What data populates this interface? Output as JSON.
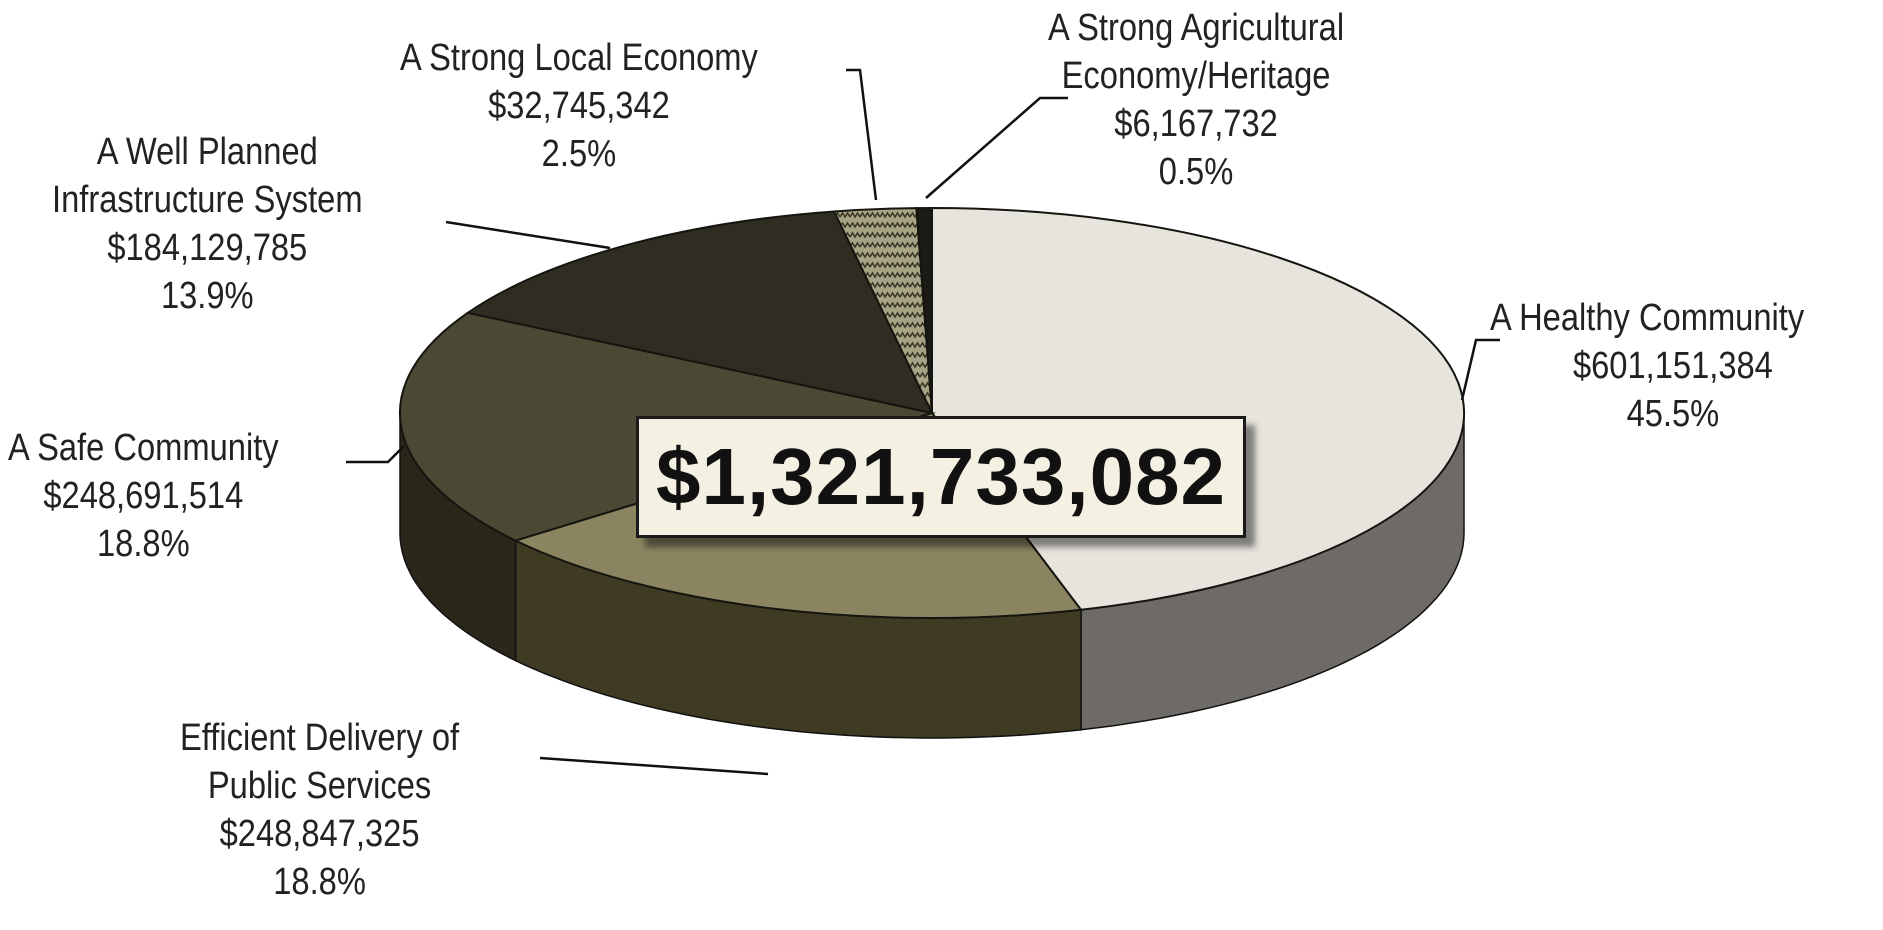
{
  "chart_data": {
    "type": "pie",
    "title": "",
    "total_label": "$1,321,733,082",
    "slices": [
      {
        "name": "A Healthy Community",
        "name_lines": [
          "A Healthy Community"
        ],
        "value": 601151384,
        "value_label": "$601,151,384",
        "percent": 45.5,
        "percent_label": "45.5%",
        "color": "#e6e4dc",
        "side_color": "#6e6b66"
      },
      {
        "name": "Efficient Delivery of Public Services",
        "name_lines": [
          "Efficient Delivery of",
          "Public Services"
        ],
        "value": 248847325,
        "value_label": "$248,847,325",
        "percent": 18.8,
        "percent_label": "18.8%",
        "color": "#8a8460",
        "side_color": "#3f3a22"
      },
      {
        "name": "A Safe Community",
        "name_lines": [
          "A Safe Community"
        ],
        "value": 248691514,
        "value_label": "$248,691,514",
        "percent": 18.8,
        "percent_label": "18.8%",
        "color": "#4b4833",
        "side_color": "#2a271a"
      },
      {
        "name": "A Well Planned Infrastructure System",
        "name_lines": [
          "A Well Planned",
          "Infrastructure System"
        ],
        "value": 184129785,
        "value_label": "$184,129,785",
        "percent": 13.9,
        "percent_label": "13.9%",
        "color": "#2f2c21",
        "side_color": "#1c1a12"
      },
      {
        "name": "A Strong Local Economy",
        "name_lines": [
          "A Strong Local Economy"
        ],
        "value": 32745342,
        "value_label": "$32,745,342",
        "percent": 2.5,
        "percent_label": "2.5%",
        "color": "#9a9576",
        "side_color": "#4d4935",
        "pattern": "zigzag"
      },
      {
        "name": "A Strong Agricultural Economy/Heritage",
        "name_lines": [
          "A Strong Agricultural",
          "Economy/Heritage"
        ],
        "value": 6167732,
        "value_label": "$6,167,732",
        "percent": 0.5,
        "percent_label": "0.5%",
        "color": "#1b1a14",
        "side_color": "#0f0e0a"
      }
    ]
  }
}
